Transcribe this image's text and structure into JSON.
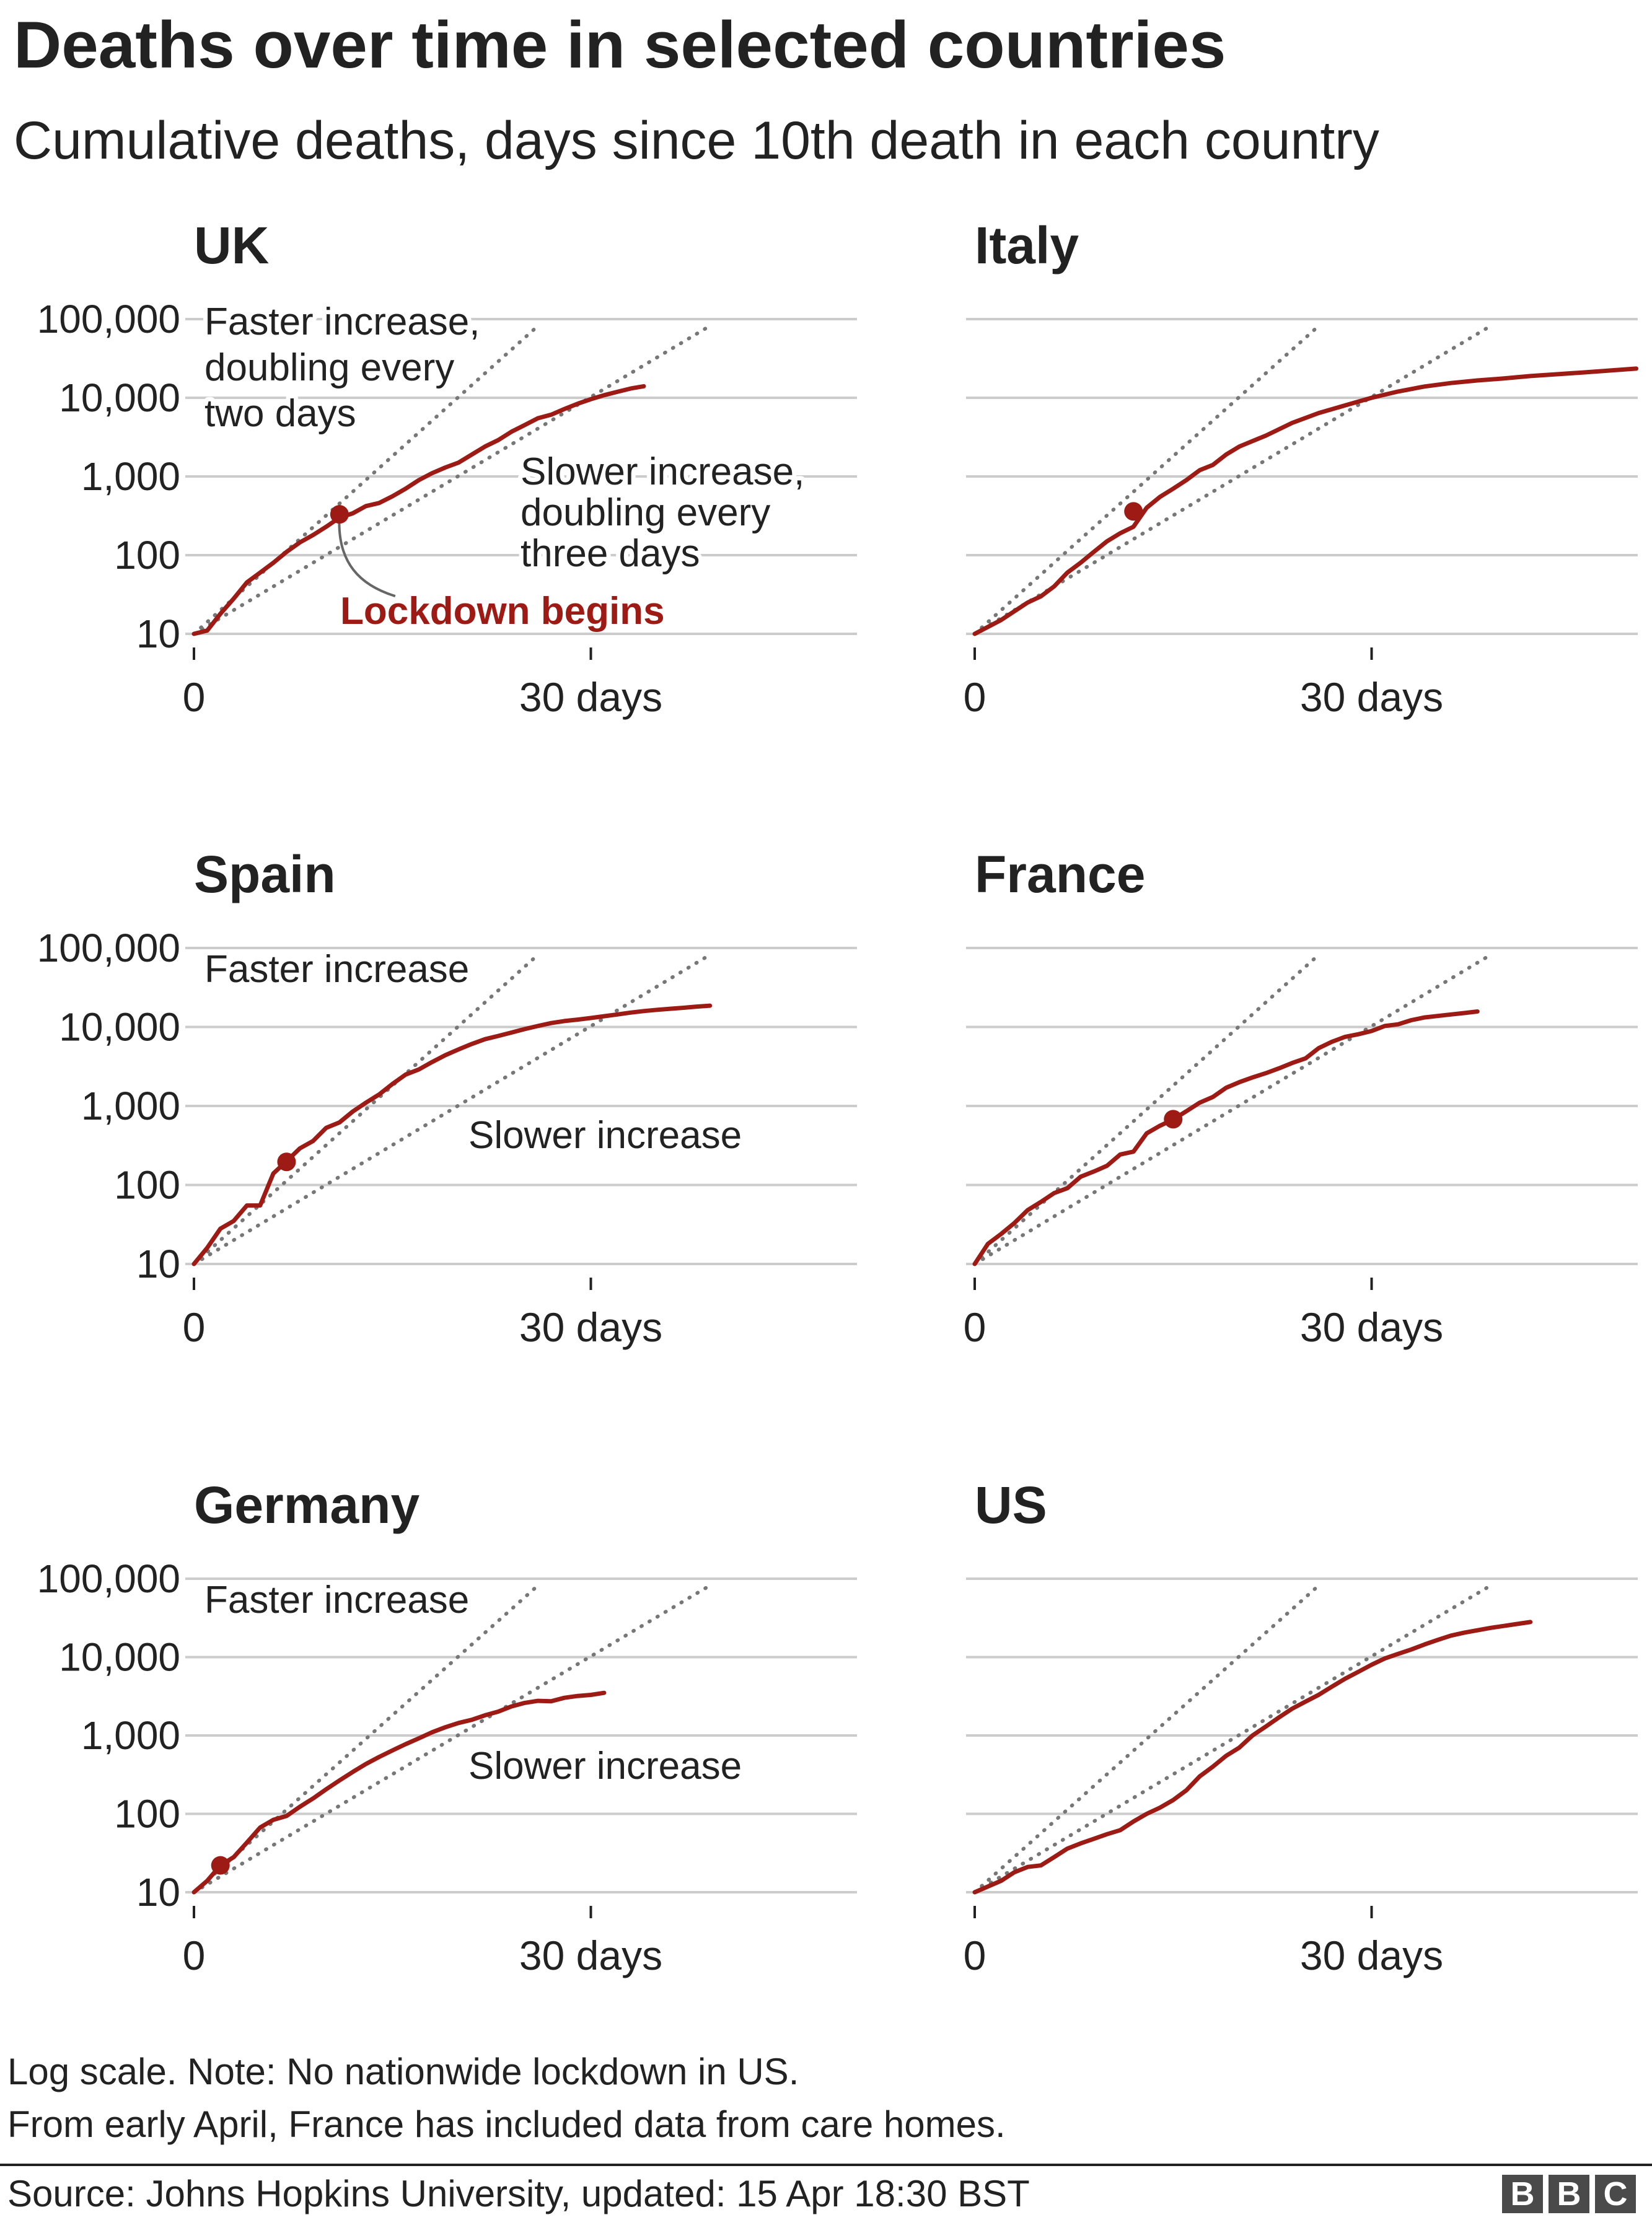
{
  "title": "Deaths over time in selected countries",
  "subtitle": "Cumulative deaths, days since 10th death in each country",
  "notes": {
    "line1": "Log scale. Note: No nationwide lockdown in US.",
    "line2": "From early April, France has included data from care homes."
  },
  "source": "Source: Johns Hopkins University, updated:  15 Apr 18:30 BST",
  "logo_letters": [
    "B",
    "B",
    "C"
  ],
  "colors": {
    "series": "#9e1a14",
    "reference": "#777777",
    "grid": "#cccccc",
    "text": "#222222"
  },
  "chart_data": [
    {
      "type": "line",
      "title": "UK",
      "yscale": "log",
      "yticks": [
        10,
        100,
        1000,
        10000,
        100000
      ],
      "yticklabels": [
        "10",
        "100",
        "1,000",
        "10,000",
        "100,000"
      ],
      "xticks": [
        0,
        30
      ],
      "xticklabels": [
        "0",
        "30 days"
      ],
      "xlim": [
        0,
        50
      ],
      "ylim": [
        10,
        100000
      ],
      "show_y_labels": true,
      "series": [
        {
          "x": [
            0,
            1,
            2,
            3,
            4,
            5,
            6,
            7,
            8,
            9,
            10,
            11,
            12,
            13,
            14,
            15,
            16,
            17,
            18,
            19,
            20,
            21,
            22,
            23,
            24,
            25,
            26,
            27,
            28,
            29,
            30,
            31,
            32,
            33,
            34
          ],
          "y": [
            10,
            11,
            18,
            28,
            45,
            60,
            80,
            110,
            145,
            180,
            230,
            300,
            340,
            420,
            460,
            560,
            700,
            900,
            1100,
            1300,
            1500,
            1900,
            2400,
            2900,
            3700,
            4500,
            5500,
            6100,
            7200,
            8400,
            9600,
            10800,
            11900,
            13100,
            14000
          ]
        }
      ],
      "marker": {
        "x": 11,
        "y": 330
      },
      "reference_lines": {
        "faster_doubling_days": 2,
        "slower_doubling_days": 3,
        "faster_end_x": 26,
        "slower_end_x": 39
      },
      "annotations": {
        "faster": [
          "Faster increase,",
          "doubling every",
          "two days"
        ],
        "slower": [
          "Slower increase,",
          "doubling every",
          "three days"
        ],
        "lockdown": "Lockdown begins"
      }
    },
    {
      "type": "line",
      "title": "Italy",
      "yscale": "log",
      "yticks": [
        10,
        100,
        1000,
        10000,
        100000
      ],
      "xticks": [
        0,
        30
      ],
      "xticklabels": [
        "0",
        "30 days"
      ],
      "xlim": [
        0,
        50
      ],
      "ylim": [
        10,
        100000
      ],
      "show_y_labels": false,
      "series": [
        {
          "x": [
            0,
            2,
            4,
            5,
            6,
            7,
            8,
            9,
            10,
            11,
            12,
            13,
            14,
            15,
            16,
            17,
            18,
            19,
            20,
            22,
            24,
            26,
            28,
            30,
            32,
            34,
            36,
            38,
            40,
            42,
            44,
            46,
            48,
            50
          ],
          "y": [
            10,
            15,
            25,
            30,
            40,
            60,
            80,
            110,
            150,
            190,
            230,
            400,
            550,
            700,
            900,
            1200,
            1400,
            1900,
            2400,
            3300,
            4800,
            6400,
            8000,
            10000,
            12000,
            13900,
            15400,
            16600,
            17600,
            18900,
            19900,
            21000,
            22200,
            23500
          ]
        }
      ],
      "marker": {
        "x": 12,
        "y": 360
      },
      "reference_lines": {
        "faster_doubling_days": 2,
        "slower_doubling_days": 3,
        "faster_end_x": 26,
        "slower_end_x": 39
      }
    },
    {
      "type": "line",
      "title": "Spain",
      "yscale": "log",
      "yticks": [
        10,
        100,
        1000,
        10000,
        100000
      ],
      "yticklabels": [
        "10",
        "100",
        "1,000",
        "10,000",
        "100,000"
      ],
      "xticks": [
        0,
        30
      ],
      "xticklabels": [
        "0",
        "30 days"
      ],
      "xlim": [
        0,
        50
      ],
      "ylim": [
        10,
        100000
      ],
      "show_y_labels": true,
      "series": [
        {
          "x": [
            0,
            1,
            2,
            3,
            4,
            5,
            6,
            7,
            8,
            9,
            10,
            11,
            12,
            13,
            14,
            15,
            16,
            17,
            18,
            19,
            20,
            21,
            22,
            23,
            24,
            25,
            26,
            27,
            28,
            29,
            30,
            31,
            32,
            33,
            34,
            35,
            36,
            37,
            38,
            39
          ],
          "y": [
            10,
            16,
            28,
            35,
            55,
            55,
            140,
            200,
            290,
            360,
            530,
            620,
            850,
            1100,
            1400,
            1900,
            2500,
            2900,
            3600,
            4400,
            5200,
            6100,
            7000,
            7700,
            8500,
            9400,
            10300,
            11200,
            11900,
            12400,
            13000,
            13700,
            14400,
            15200,
            15900,
            16500,
            17000,
            17500,
            18100,
            18600
          ]
        }
      ],
      "marker": {
        "x": 7,
        "y": 196
      },
      "reference_lines": {
        "faster_doubling_days": 2,
        "slower_doubling_days": 3,
        "faster_end_x": 26,
        "slower_end_x": 39
      },
      "annotations": {
        "faster": [
          "Faster increase"
        ],
        "slower": [
          "Slower increase"
        ]
      }
    },
    {
      "type": "line",
      "title": "France",
      "yscale": "log",
      "yticks": [
        10,
        100,
        1000,
        10000,
        100000
      ],
      "xticks": [
        0,
        30
      ],
      "xticklabels": [
        "0",
        "30 days"
      ],
      "xlim": [
        0,
        50
      ],
      "ylim": [
        10,
        100000
      ],
      "show_y_labels": false,
      "series": [
        {
          "x": [
            0,
            1,
            2,
            3,
            4,
            5,
            6,
            7,
            8,
            9,
            10,
            11,
            12,
            13,
            14,
            15,
            16,
            17,
            18,
            19,
            20,
            21,
            22,
            23,
            24,
            25,
            26,
            27,
            28,
            29,
            30,
            31,
            32,
            33,
            34,
            35,
            36,
            37,
            38
          ],
          "y": [
            10,
            18,
            24,
            33,
            48,
            61,
            79,
            91,
            127,
            148,
            175,
            243,
            264,
            450,
            562,
            674,
            860,
            1100,
            1300,
            1700,
            2000,
            2300,
            2600,
            3000,
            3500,
            4000,
            5400,
            6500,
            7500,
            8100,
            8900,
            10300,
            10800,
            12200,
            13200,
            13800,
            14400,
            15000,
            15700
          ]
        }
      ],
      "marker": {
        "x": 15,
        "y": 680
      },
      "reference_lines": {
        "faster_doubling_days": 2,
        "slower_doubling_days": 3,
        "faster_end_x": 26,
        "slower_end_x": 39
      }
    },
    {
      "type": "line",
      "title": "Germany",
      "yscale": "log",
      "yticks": [
        10,
        100,
        1000,
        10000,
        100000
      ],
      "yticklabels": [
        "10",
        "100",
        "1,000",
        "10,000",
        "100,000"
      ],
      "xticks": [
        0,
        30
      ],
      "xticklabels": [
        "0",
        "30 days"
      ],
      "xlim": [
        0,
        50
      ],
      "ylim": [
        10,
        100000
      ],
      "show_y_labels": true,
      "series": [
        {
          "x": [
            0,
            1,
            2,
            3,
            4,
            5,
            6,
            7,
            8,
            9,
            10,
            11,
            12,
            13,
            14,
            15,
            16,
            17,
            18,
            19,
            20,
            21,
            22,
            23,
            24,
            25,
            26,
            27,
            28,
            29,
            30,
            31
          ],
          "y": [
            10,
            14,
            22,
            28,
            43,
            67,
            84,
            94,
            123,
            157,
            206,
            267,
            342,
            433,
            533,
            645,
            775,
            920,
            1100,
            1275,
            1444,
            1584,
            1810,
            2016,
            2349,
            2607,
            2767,
            2736,
            3022,
            3194,
            3294,
            3500
          ]
        }
      ],
      "marker": {
        "x": 2,
        "y": 22
      },
      "reference_lines": {
        "faster_doubling_days": 2,
        "slower_doubling_days": 3,
        "faster_end_x": 26,
        "slower_end_x": 39
      },
      "annotations": {
        "faster": [
          "Faster increase"
        ],
        "slower": [
          "Slower increase"
        ]
      }
    },
    {
      "type": "line",
      "title": "US",
      "yscale": "log",
      "yticks": [
        10,
        100,
        1000,
        10000,
        100000
      ],
      "xticks": [
        0,
        30
      ],
      "xticklabels": [
        "0",
        "30 days"
      ],
      "xlim": [
        0,
        50
      ],
      "ylim": [
        10,
        100000
      ],
      "show_y_labels": false,
      "series": [
        {
          "x": [
            0,
            2,
            3,
            4,
            5,
            6,
            7,
            8,
            9,
            10,
            11,
            12,
            13,
            14,
            15,
            16,
            17,
            18,
            19,
            20,
            21,
            22,
            23,
            24,
            25,
            26,
            27,
            28,
            29,
            30,
            31,
            32,
            33,
            34,
            35,
            36,
            37,
            38,
            39,
            40,
            41,
            42
          ],
          "y": [
            10,
            14,
            18,
            21,
            22,
            28,
            36,
            42,
            48,
            55,
            62,
            80,
            100,
            120,
            150,
            200,
            300,
            400,
            550,
            700,
            1000,
            1300,
            1700,
            2200,
            2700,
            3300,
            4200,
            5300,
            6500,
            8000,
            9600,
            11000,
            12500,
            14500,
            16600,
            18800,
            20500,
            22000,
            23600,
            25000,
            26500,
            28000
          ]
        }
      ],
      "reference_lines": {
        "faster_doubling_days": 2,
        "slower_doubling_days": 3,
        "faster_end_x": 26,
        "slower_end_x": 39
      }
    }
  ]
}
